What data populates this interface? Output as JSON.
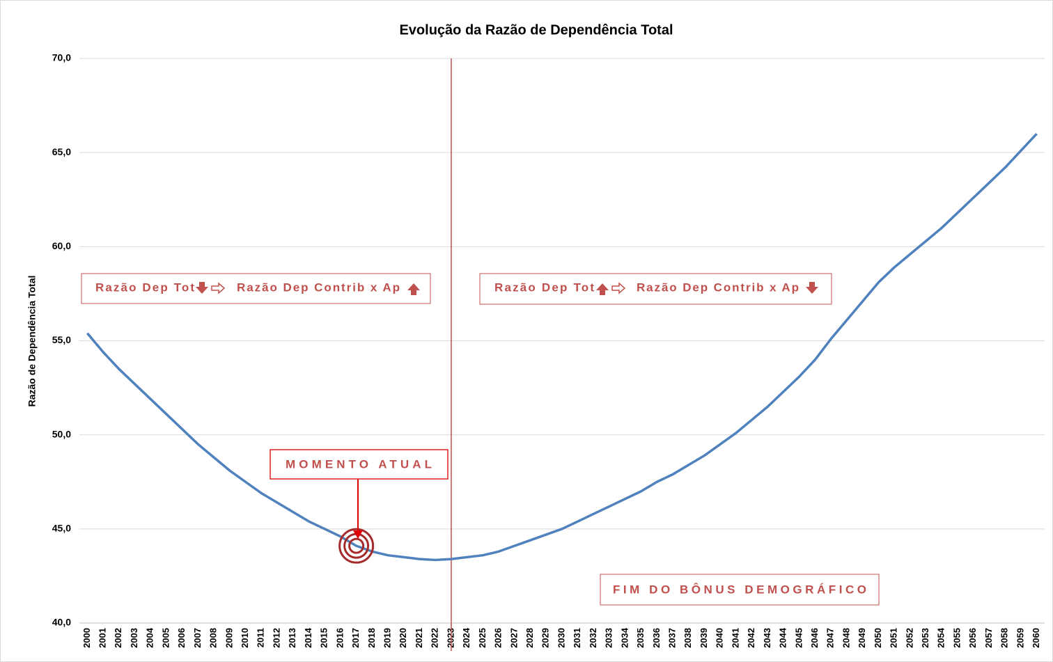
{
  "chart_data": {
    "type": "line",
    "title": "Evolução da Razão de Dependência Total",
    "y_label": "Razão de Dependência Total",
    "categories": [
      "2000",
      "2001",
      "2002",
      "2003",
      "2004",
      "2005",
      "2006",
      "2007",
      "2008",
      "2009",
      "2010",
      "2011",
      "2012",
      "2013",
      "2014",
      "2015",
      "2016",
      "2017",
      "2018",
      "2019",
      "2020",
      "2021",
      "2022",
      "2023",
      "2024",
      "2025",
      "2026",
      "2027",
      "2028",
      "2029",
      "2030",
      "2031",
      "2032",
      "2033",
      "2034",
      "2035",
      "2036",
      "2037",
      "2038",
      "2039",
      "2040",
      "2041",
      "2042",
      "2043",
      "2044",
      "2045",
      "2046",
      "2047",
      "2048",
      "2049",
      "2050",
      "2051",
      "2052",
      "2053",
      "2054",
      "2055",
      "2056",
      "2057",
      "2058",
      "2059",
      "2060"
    ],
    "series": [
      {
        "name": "Razão de Dependência Total",
        "color": "#4f81bd",
        "values": [
          55.4,
          54.4,
          53.5,
          52.7,
          51.9,
          51.1,
          50.3,
          49.5,
          48.8,
          48.1,
          47.5,
          46.9,
          46.4,
          45.9,
          45.4,
          45.0,
          44.6,
          44.1,
          43.8,
          43.6,
          43.5,
          43.4,
          43.35,
          43.4,
          43.5,
          43.6,
          43.8,
          44.1,
          44.4,
          44.7,
          45.0,
          45.4,
          45.8,
          46.2,
          46.6,
          47.0,
          47.5,
          47.9,
          48.4,
          48.9,
          49.5,
          50.1,
          50.8,
          51.5,
          52.3,
          53.1,
          54.0,
          55.1,
          56.1,
          57.1,
          58.1,
          58.9,
          59.6,
          60.3,
          61.0,
          61.8,
          62.6,
          63.4,
          64.2,
          65.1,
          66.0
        ]
      }
    ],
    "ylim": [
      40,
      70
    ],
    "yticks": [
      {
        "value": 40,
        "label": "40,0"
      },
      {
        "value": 45,
        "label": "45,0"
      },
      {
        "value": 50,
        "label": "50,0"
      },
      {
        "value": 55,
        "label": "55,0"
      },
      {
        "value": 60,
        "label": "60,0"
      },
      {
        "value": 65,
        "label": "65,0"
      },
      {
        "value": 70,
        "label": "70,0"
      }
    ],
    "grid": true,
    "vertical_line": {
      "x": "2023",
      "color": "#c0504d"
    },
    "highlight": {
      "x": "2017",
      "color": "#a52a2a"
    },
    "annotations": {
      "left_a": "Razão Dep Tot",
      "left_b": "Razão Dep Contrib x Ap",
      "right_a": "Razão Dep Tot",
      "right_b": "Razão Dep Contrib x Ap",
      "current": "MOMENTO ATUAL",
      "end": "FIM DO BÔNUS DEMOGRÁFICO"
    }
  }
}
